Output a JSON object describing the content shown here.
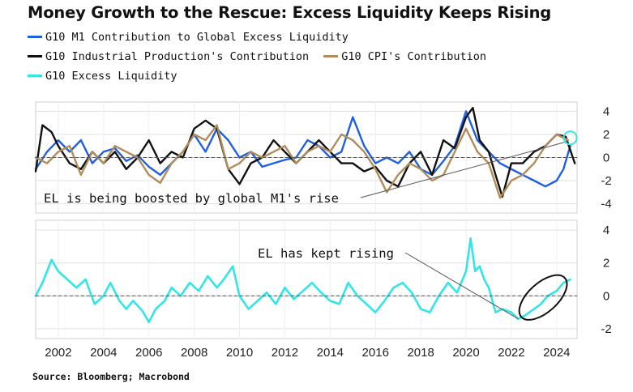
{
  "title": "Money Growth to the Rescue: Excess Liquidity Keeps Rising",
  "legend": [
    {
      "label": "G10 M1 Contribution to Global Excess Liquidity",
      "color": "#1f5fe0",
      "row": 0
    },
    {
      "label": "G10 Industrial Production's Contribution",
      "color": "#111111",
      "row": 1
    },
    {
      "label": "G10 CPI's Contribution",
      "color": "#b08d5a",
      "row": 1
    },
    {
      "label": "G10 Excess Liquidity",
      "color": "#33e6e6",
      "row": 2
    }
  ],
  "source": "Source: Bloomberg; Macrobond",
  "chart_data": [
    {
      "type": "line",
      "panel": "top",
      "xlim": [
        2001.0,
        2024.9
      ],
      "ylim": [
        -4.8,
        4.8
      ],
      "yticks": [
        4,
        2,
        0,
        -2,
        -4
      ],
      "grid": true,
      "series": [
        {
          "name": "G10 M1 Contribution to Global Excess Liquidity",
          "color": "#1f5fe0",
          "x": [
            2001.0,
            2001.5,
            2002.0,
            2002.5,
            2003.0,
            2003.5,
            2004.0,
            2004.5,
            2005.0,
            2005.5,
            2006.0,
            2006.5,
            2007.0,
            2007.5,
            2008.0,
            2008.5,
            2009.0,
            2009.5,
            2010.0,
            2010.5,
            2011.0,
            2011.5,
            2012.0,
            2012.5,
            2013.0,
            2013.5,
            2014.0,
            2014.5,
            2015.0,
            2015.5,
            2016.0,
            2016.5,
            2017.0,
            2017.5,
            2018.0,
            2018.5,
            2019.0,
            2019.5,
            2020.0,
            2020.5,
            2021.0,
            2021.5,
            2022.0,
            2022.5,
            2023.0,
            2023.5,
            2024.0,
            2024.3,
            2024.6
          ],
          "y": [
            -1.0,
            0.5,
            1.5,
            0.5,
            1.5,
            -0.5,
            0.5,
            0.8,
            -0.3,
            0.2,
            -0.8,
            -1.5,
            -0.5,
            0.5,
            2.0,
            0.5,
            2.5,
            1.5,
            0.0,
            0.5,
            -0.8,
            -0.5,
            -0.2,
            0.0,
            1.5,
            1.0,
            0.0,
            0.5,
            3.5,
            1.0,
            -0.5,
            0.0,
            -0.5,
            0.5,
            -1.0,
            -1.5,
            -0.3,
            1.0,
            4.0,
            1.5,
            0.5,
            -0.5,
            -1.0,
            -1.5,
            -2.0,
            -2.5,
            -2.0,
            -1.0,
            1.0
          ]
        },
        {
          "name": "G10 Industrial Production's Contribution",
          "color": "#111111",
          "x": [
            2001.0,
            2001.3,
            2001.7,
            2002.0,
            2002.5,
            2003.0,
            2003.5,
            2004.0,
            2004.5,
            2005.0,
            2005.5,
            2006.0,
            2006.5,
            2007.0,
            2007.5,
            2008.0,
            2008.5,
            2009.0,
            2009.5,
            2010.0,
            2010.5,
            2011.0,
            2011.5,
            2012.0,
            2012.5,
            2013.0,
            2013.5,
            2014.0,
            2014.5,
            2015.0,
            2015.5,
            2016.0,
            2016.5,
            2017.0,
            2017.5,
            2018.0,
            2018.5,
            2019.0,
            2019.5,
            2020.0,
            2020.3,
            2020.6,
            2021.0,
            2021.3,
            2021.6,
            2022.0,
            2022.5,
            2023.0,
            2023.5,
            2024.0,
            2024.4,
            2024.8
          ],
          "y": [
            -1.2,
            2.8,
            2.2,
            1.0,
            -0.5,
            -1.0,
            0.5,
            -0.5,
            0.5,
            -1.0,
            0.0,
            1.5,
            -0.5,
            0.5,
            0.0,
            2.5,
            3.2,
            2.5,
            -1.0,
            -2.3,
            -0.5,
            0.0,
            1.5,
            0.5,
            -0.5,
            0.5,
            1.5,
            0.5,
            -0.5,
            -0.5,
            -1.2,
            -0.8,
            -2.0,
            -2.5,
            -0.5,
            0.5,
            -1.5,
            1.5,
            0.8,
            3.5,
            4.3,
            1.5,
            0.5,
            -1.5,
            -3.4,
            -0.5,
            -0.5,
            0.5,
            1.0,
            2.0,
            1.8,
            -0.5
          ]
        },
        {
          "name": "G10 CPI's Contribution",
          "color": "#b08d5a",
          "x": [
            2001.0,
            2001.5,
            2002.0,
            2002.5,
            2003.0,
            2003.5,
            2004.0,
            2004.5,
            2005.0,
            2005.5,
            2006.0,
            2006.5,
            2007.0,
            2007.5,
            2008.0,
            2008.5,
            2009.0,
            2009.5,
            2010.0,
            2010.5,
            2011.0,
            2011.5,
            2012.0,
            2012.5,
            2013.0,
            2013.5,
            2014.0,
            2014.5,
            2015.0,
            2015.5,
            2016.0,
            2016.5,
            2017.0,
            2017.5,
            2018.0,
            2018.5,
            2019.0,
            2019.5,
            2020.0,
            2020.5,
            2021.0,
            2021.5,
            2022.0,
            2022.5,
            2023.0,
            2023.5,
            2024.0,
            2024.5
          ],
          "y": [
            0.0,
            -0.5,
            0.5,
            1.0,
            -1.5,
            0.5,
            -0.5,
            1.0,
            0.5,
            0.0,
            -1.5,
            -2.2,
            -0.5,
            0.5,
            2.0,
            1.5,
            2.8,
            -1.0,
            -0.5,
            0.5,
            0.0,
            0.5,
            1.0,
            -0.5,
            0.5,
            1.0,
            0.5,
            2.0,
            1.5,
            0.5,
            -1.0,
            -3.0,
            -1.5,
            -0.5,
            -1.0,
            -2.0,
            -1.5,
            0.5,
            2.5,
            0.5,
            -0.5,
            -3.5,
            -2.0,
            -1.5,
            -0.5,
            1.0,
            2.0,
            1.5
          ]
        },
        {
          "name": "",
          "color": "#555555",
          "x": [
            2001.0,
            2024.9
          ],
          "y": [
            0,
            0
          ]
        }
      ]
    },
    {
      "type": "line",
      "panel": "bottom",
      "xlim": [
        2001.0,
        2024.9
      ],
      "ylim": [
        -2.6,
        4.6
      ],
      "yticks": [
        4,
        2,
        0,
        -2
      ],
      "xticks": [
        2002,
        2004,
        2006,
        2008,
        2010,
        2012,
        2014,
        2016,
        2018,
        2020,
        2022,
        2024
      ],
      "grid": true,
      "series": [
        {
          "name": "G10 Excess Liquidity",
          "color": "#33e6e6",
          "x": [
            2001.0,
            2001.3,
            2001.7,
            2002.0,
            2002.4,
            2002.8,
            2003.2,
            2003.6,
            2004.0,
            2004.3,
            2004.7,
            2005.0,
            2005.3,
            2005.7,
            2006.0,
            2006.3,
            2006.7,
            2007.0,
            2007.4,
            2007.8,
            2008.2,
            2008.6,
            2009.0,
            2009.3,
            2009.7,
            2010.0,
            2010.4,
            2010.8,
            2011.2,
            2011.6,
            2012.0,
            2012.4,
            2012.8,
            2013.2,
            2013.6,
            2014.0,
            2014.4,
            2014.8,
            2015.2,
            2015.6,
            2016.0,
            2016.4,
            2016.8,
            2017.2,
            2017.6,
            2018.0,
            2018.4,
            2018.8,
            2019.2,
            2019.6,
            2020.0,
            2020.2,
            2020.4,
            2020.6,
            2020.8,
            2021.0,
            2021.3,
            2021.6,
            2022.0,
            2022.3,
            2022.6,
            2023.0,
            2023.3,
            2023.6,
            2024.0,
            2024.3,
            2024.6
          ],
          "y": [
            0.0,
            0.8,
            2.2,
            1.5,
            1.0,
            0.5,
            1.0,
            -0.5,
            0.0,
            0.8,
            -0.3,
            -0.8,
            -0.3,
            -0.9,
            -1.6,
            -0.8,
            -0.3,
            0.5,
            0.0,
            0.8,
            0.3,
            1.2,
            0.5,
            1.0,
            1.8,
            0.0,
            -0.8,
            -0.3,
            0.2,
            -0.5,
            0.5,
            -0.2,
            0.3,
            0.8,
            0.2,
            -0.3,
            -0.5,
            0.8,
            0.0,
            -0.5,
            -1.0,
            -0.3,
            0.5,
            0.8,
            0.2,
            -0.8,
            -1.0,
            0.0,
            0.8,
            0.2,
            1.5,
            3.5,
            1.5,
            1.8,
            1.0,
            0.5,
            -1.0,
            -0.8,
            -1.0,
            -1.4,
            -1.2,
            -0.8,
            -0.5,
            0.0,
            0.3,
            0.8,
            1.0
          ]
        },
        {
          "name": "",
          "color": "#555555",
          "x": [
            2001.0,
            2024.9
          ],
          "y": [
            0,
            0
          ]
        }
      ]
    }
  ],
  "annotations": {
    "top": "EL is being boosted by global M1's rise",
    "bottom": "EL has kept rising"
  }
}
